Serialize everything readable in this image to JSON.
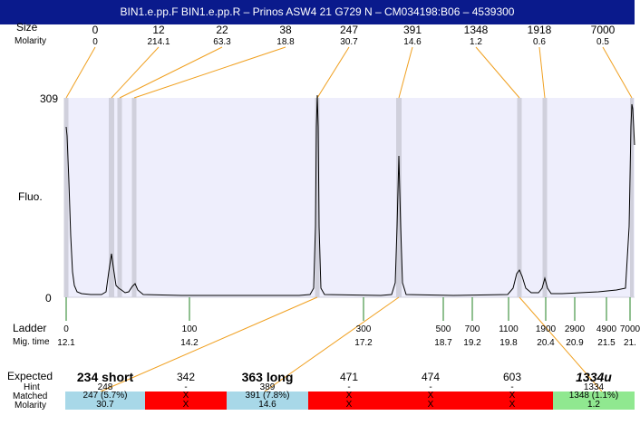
{
  "title": "BIN1.e.pp.F  BIN1.e.pp.R – Prinos ASW4 21 G729 N – CM034198:B06 – 4539300",
  "labels": {
    "size": "Size",
    "molarity_top": "Molarity",
    "fluo": "Fluo.",
    "ymax": "309",
    "ymin": "0",
    "ladder": "Ladder",
    "mig_time": "Mig. time",
    "expected": "Expected",
    "hint": "Hint",
    "matched": "Matched",
    "molarity_bottom": "Molarity"
  },
  "peaks_top": [
    {
      "size": "0",
      "molarity": "0"
    },
    {
      "size": "12",
      "molarity": "214.1"
    },
    {
      "size": "22",
      "molarity": "63.3"
    },
    {
      "size": "38",
      "molarity": "18.8"
    },
    {
      "size": "247",
      "molarity": "30.7"
    },
    {
      "size": "391",
      "molarity": "14.6"
    },
    {
      "size": "1348",
      "molarity": "1.2"
    },
    {
      "size": "1918",
      "molarity": "0.6"
    },
    {
      "size": "7000",
      "molarity": "0.5"
    }
  ],
  "ladder": [
    {
      "size": "0",
      "time": "12.1"
    },
    {
      "size": "100",
      "time": "14.2"
    },
    {
      "size": "300",
      "time": "17.2"
    },
    {
      "size": "500",
      "time": "18.7"
    },
    {
      "size": "700",
      "time": "19.2"
    },
    {
      "size": "1100",
      "time": "19.8"
    },
    {
      "size": "1900",
      "time": "20.4"
    },
    {
      "size": "2900",
      "time": "20.9"
    },
    {
      "size": "4900",
      "time": "21.5"
    },
    {
      "size": "7000",
      "time": "21."
    }
  ],
  "expected": [
    {
      "name": "234 short",
      "hint": "248",
      "matched": "247 (5.7%)",
      "molarity": "30.7",
      "status": "matched",
      "style": "bold"
    },
    {
      "name": "342",
      "hint": "-",
      "matched": "X",
      "molarity": "X",
      "status": "missing",
      "style": "normal"
    },
    {
      "name": "363 long",
      "hint": "389",
      "matched": "391 (7.8%)",
      "molarity": "14.6",
      "status": "matched",
      "style": "bold"
    },
    {
      "name": "471",
      "hint": "-",
      "matched": "X",
      "molarity": "X",
      "status": "missing",
      "style": "normal"
    },
    {
      "name": "474",
      "hint": "-",
      "matched": "X",
      "molarity": "X",
      "status": "missing",
      "style": "normal"
    },
    {
      "name": "603",
      "hint": "-",
      "matched": "X",
      "molarity": "X",
      "status": "missing",
      "style": "normal"
    },
    {
      "name": "1334u",
      "hint": "1334",
      "matched": "1348 (1.1%)",
      "molarity": "1.2",
      "status": "unexpected",
      "style": "italic"
    }
  ],
  "colors": {
    "title_bar": "#0a1a8c",
    "plot_bg": "#eeeefc",
    "peak_band": "#d0d0dc",
    "orange_link": "#f0a020",
    "green_tick": "#208020",
    "matched": "#a8d8e8",
    "missing": "#ff0000",
    "unexpected": "#90e890"
  }
}
